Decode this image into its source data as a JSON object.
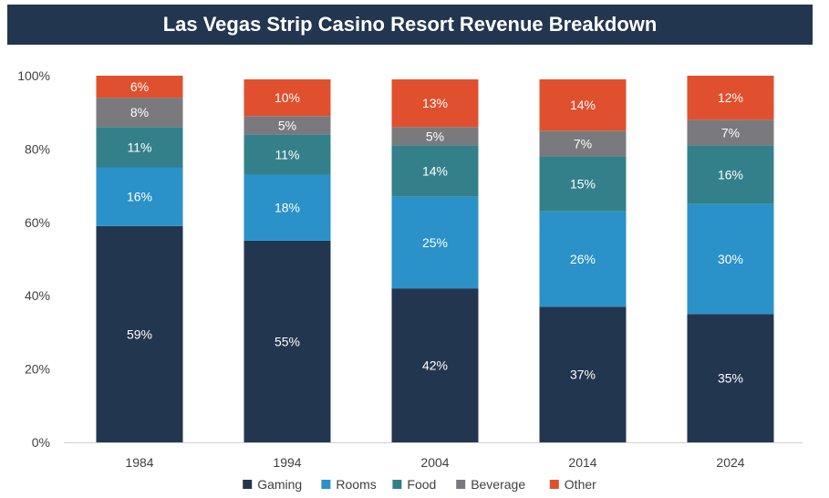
{
  "chart_data": {
    "type": "bar",
    "stacked": true,
    "title": "Las Vegas Strip Casino Resort Revenue Breakdown",
    "xlabel": "",
    "ylabel": "",
    "categories": [
      "1984",
      "1994",
      "2004",
      "2014",
      "2024"
    ],
    "series": [
      {
        "name": "Gaming",
        "color": "#23364f",
        "values": [
          59,
          55,
          42,
          37,
          35
        ],
        "labels": [
          "59%",
          "55%",
          "42%",
          "37%",
          "35%"
        ]
      },
      {
        "name": "Rooms",
        "color": "#2a91c9",
        "values": [
          16,
          18,
          25,
          26,
          30
        ],
        "labels": [
          "16%",
          "18%",
          "25%",
          "26%",
          "30%"
        ]
      },
      {
        "name": "Food",
        "color": "#34808a",
        "values": [
          11,
          11,
          14,
          15,
          16
        ],
        "labels": [
          "11%",
          "11%",
          "14%",
          "15%",
          "16%"
        ]
      },
      {
        "name": "Beverage",
        "color": "#7a7a7e",
        "values": [
          8,
          5,
          5,
          7,
          7
        ],
        "labels": [
          "8%",
          "5%",
          "5%",
          "7%",
          "7%"
        ]
      },
      {
        "name": "Other",
        "color": "#e0502e",
        "values": [
          6,
          10,
          13,
          14,
          12
        ],
        "labels": [
          "6%",
          "10%",
          "13%",
          "14%",
          "12%"
        ]
      }
    ],
    "ylim": [
      0,
      100
    ],
    "yticks": [
      0,
      20,
      40,
      60,
      80,
      100
    ],
    "ytick_labels": [
      "0%",
      "20%",
      "40%",
      "60%",
      "80%",
      "100%"
    ],
    "grid": false,
    "legend_position": "bottom"
  }
}
